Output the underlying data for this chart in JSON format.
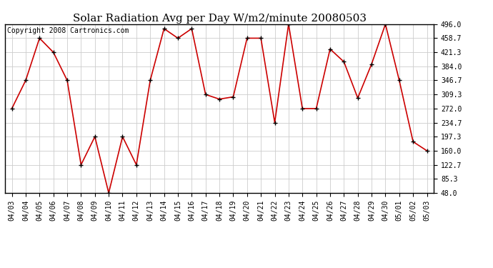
{
  "title": "Solar Radiation Avg per Day W/m2/minute 20080503",
  "copyright": "Copyright 2008 Cartronics.com",
  "dates": [
    "04/03",
    "04/04",
    "04/05",
    "04/06",
    "04/07",
    "04/08",
    "04/09",
    "04/10",
    "04/11",
    "04/12",
    "04/13",
    "04/14",
    "04/15",
    "04/16",
    "04/17",
    "04/18",
    "04/19",
    "04/20",
    "04/21",
    "04/22",
    "04/23",
    "04/24",
    "04/25",
    "04/26",
    "04/27",
    "04/28",
    "04/29",
    "04/30",
    "05/01",
    "05/02",
    "05/03"
  ],
  "values": [
    272.0,
    346.7,
    458.7,
    421.3,
    346.7,
    122.7,
    197.3,
    48.0,
    197.3,
    122.7,
    346.7,
    484.0,
    458.7,
    484.0,
    309.3,
    297.0,
    303.0,
    458.7,
    458.7,
    234.7,
    496.0,
    272.0,
    272.0,
    430.0,
    396.0,
    300.0,
    390.0,
    496.0,
    346.7,
    184.0,
    160.0
  ],
  "ylim": [
    48.0,
    496.0
  ],
  "yticks": [
    48.0,
    85.3,
    122.7,
    160.0,
    197.3,
    234.7,
    272.0,
    309.3,
    346.7,
    384.0,
    421.3,
    458.7,
    496.0
  ],
  "line_color": "#cc0000",
  "marker": "+",
  "marker_color": "#000000",
  "bg_color": "#ffffff",
  "grid_color": "#cccccc",
  "title_fontsize": 11,
  "copyright_fontsize": 7,
  "tick_fontsize": 7,
  "ytick_fontsize": 7
}
